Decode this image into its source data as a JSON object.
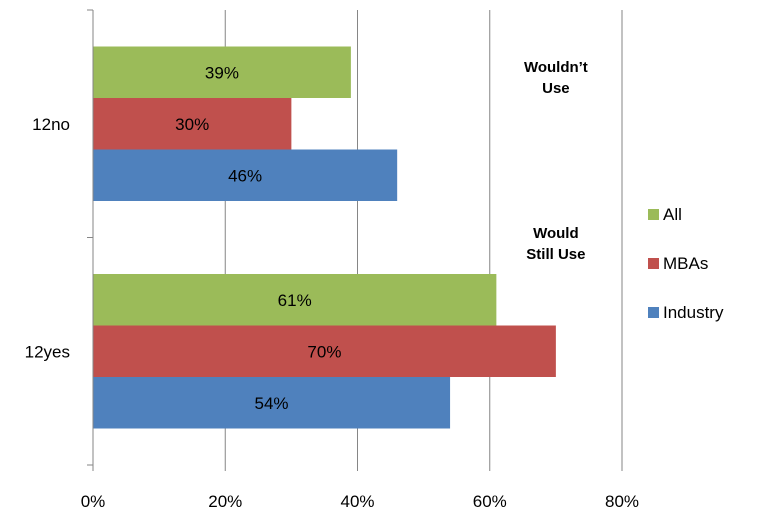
{
  "chart_data": {
    "type": "bar",
    "orientation": "horizontal",
    "categories": [
      "12no",
      "12yes"
    ],
    "series": [
      {
        "name": "All",
        "color": "#9bbb59",
        "values": [
          39,
          61
        ]
      },
      {
        "name": "MBAs",
        "color": "#c0504d",
        "values": [
          30,
          70
        ]
      },
      {
        "name": "Industry",
        "color": "#4f81bd",
        "values": [
          46,
          54
        ]
      }
    ],
    "xlim": [
      0,
      80
    ],
    "x_ticks": [
      0,
      20,
      40,
      60,
      80
    ],
    "value_suffix": "%",
    "grid": true,
    "legend": "right",
    "annotations": [
      {
        "lines": [
          "Wouldn’t",
          "Use"
        ],
        "category": "12no"
      },
      {
        "lines": [
          "Would",
          "Still Use"
        ],
        "category": "12yes"
      }
    ]
  }
}
